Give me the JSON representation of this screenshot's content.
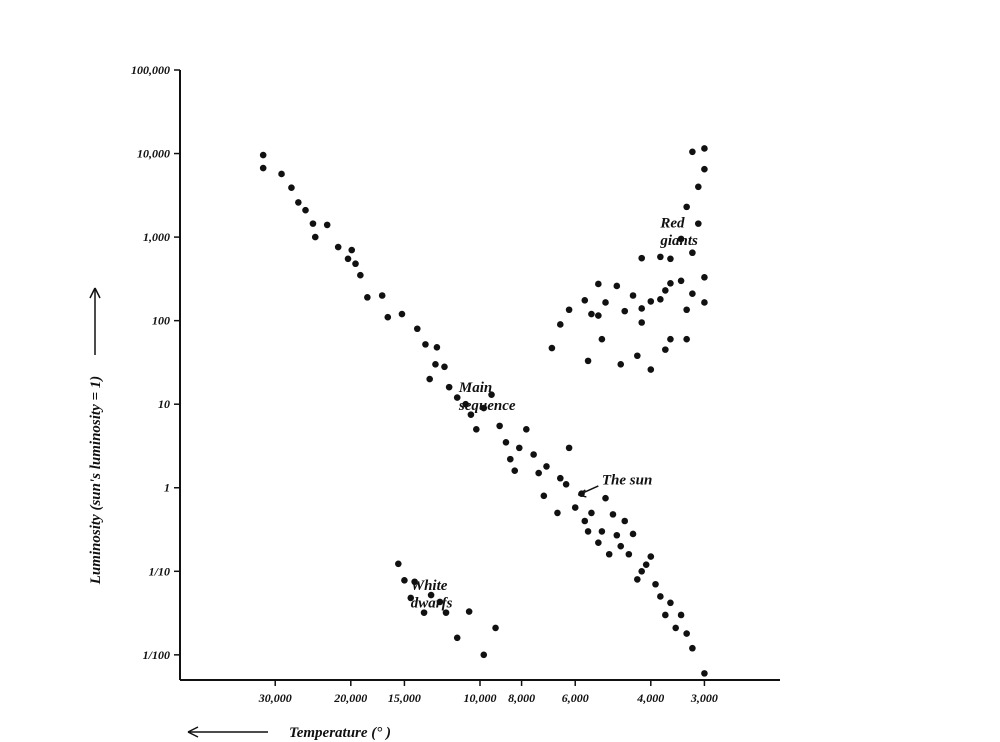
{
  "chart_data": {
    "type": "scatter",
    "title": "",
    "xlabel": "Temperature (°  )",
    "ylabel": "Luminosity (sun's luminosity = 1)",
    "x_scale": "log",
    "x_reversed": true,
    "y_scale": "log",
    "xlim": [
      50000,
      2000
    ],
    "ylim": [
      0.005,
      100000
    ],
    "grid": false,
    "legend": "none",
    "x_ticks": [
      {
        "value": 30000,
        "label": "30,000"
      },
      {
        "value": 20000,
        "label": "20,000"
      },
      {
        "value": 15000,
        "label": "15,000"
      },
      {
        "value": 10000,
        "label": "10,000"
      },
      {
        "value": 8000,
        "label": "8,000"
      },
      {
        "value": 6000,
        "label": "6,000"
      },
      {
        "value": 4000,
        "label": "4,000"
      },
      {
        "value": 3000,
        "label": "3,000"
      }
    ],
    "y_ticks": [
      {
        "value": 100000,
        "label": "100,000"
      },
      {
        "value": 10000,
        "label": "10,000"
      },
      {
        "value": 1000,
        "label": "1,000"
      },
      {
        "value": 100,
        "label": "100"
      },
      {
        "value": 10,
        "label": "10"
      },
      {
        "value": 1,
        "label": "1"
      },
      {
        "value": 0.1,
        "label": "1/10"
      },
      {
        "value": 0.01,
        "label": "1/100"
      }
    ],
    "annotations": [
      {
        "text": "Red",
        "x": 3800,
        "y": 1300
      },
      {
        "text": "giants",
        "x": 3800,
        "y": 800
      },
      {
        "text": "Main",
        "x": 11200,
        "y": 14
      },
      {
        "text": "sequence",
        "x": 11200,
        "y": 8.5
      },
      {
        "text": "White",
        "x": 14500,
        "y": 0.06
      },
      {
        "text": "dwarfs",
        "x": 14500,
        "y": 0.037
      },
      {
        "text": "The sun",
        "x": 5200,
        "y": 1.1
      }
    ],
    "sun_arrow": {
      "from": [
        5300,
        1.05
      ],
      "to": [
        5900,
        0.82
      ]
    },
    "series": [
      {
        "name": "",
        "points": [
          [
            32000,
            9600
          ],
          [
            32000,
            6700
          ],
          [
            29000,
            5700
          ],
          [
            27500,
            3900
          ],
          [
            26500,
            2600
          ],
          [
            25500,
            2100
          ],
          [
            24500,
            1450
          ],
          [
            24200,
            1000
          ],
          [
            22700,
            1400
          ],
          [
            21400,
            760
          ],
          [
            20300,
            550
          ],
          [
            19900,
            700
          ],
          [
            19500,
            480
          ],
          [
            19000,
            350
          ],
          [
            18300,
            190
          ],
          [
            16900,
            200
          ],
          [
            16400,
            110
          ],
          [
            15200,
            120
          ],
          [
            14000,
            80
          ],
          [
            13400,
            52
          ],
          [
            12700,
            30
          ],
          [
            13100,
            20
          ],
          [
            12600,
            48
          ],
          [
            12100,
            28
          ],
          [
            11800,
            16
          ],
          [
            11300,
            12
          ],
          [
            10800,
            10
          ],
          [
            10500,
            7.5
          ],
          [
            10200,
            5
          ],
          [
            9800,
            9
          ],
          [
            9400,
            13
          ],
          [
            9000,
            5.5
          ],
          [
            8700,
            3.5
          ],
          [
            8500,
            2.2
          ],
          [
            8300,
            1.6
          ],
          [
            8100,
            3
          ],
          [
            7800,
            5
          ],
          [
            7500,
            2.5
          ],
          [
            7300,
            1.5
          ],
          [
            7100,
            0.8
          ],
          [
            7000,
            1.8
          ],
          [
            6600,
            0.5
          ],
          [
            6500,
            1.3
          ],
          [
            6300,
            1.1
          ],
          [
            6200,
            3
          ],
          [
            6000,
            0.58
          ],
          [
            5800,
            0.85
          ],
          [
            5700,
            0.4
          ],
          [
            5600,
            0.3
          ],
          [
            5500,
            0.5
          ],
          [
            5300,
            0.22
          ],
          [
            5200,
            0.3
          ],
          [
            5100,
            0.75
          ],
          [
            5000,
            0.16
          ],
          [
            4900,
            0.48
          ],
          [
            4800,
            0.27
          ],
          [
            4700,
            0.2
          ],
          [
            4600,
            0.4
          ],
          [
            4500,
            0.16
          ],
          [
            4400,
            0.28
          ],
          [
            4300,
            0.08
          ],
          [
            4200,
            0.1
          ],
          [
            4100,
            0.12
          ],
          [
            4000,
            0.15
          ],
          [
            3900,
            0.07
          ],
          [
            3800,
            0.05
          ],
          [
            3700,
            0.03
          ],
          [
            3600,
            0.042
          ],
          [
            3500,
            0.021
          ],
          [
            3400,
            0.03
          ],
          [
            3300,
            0.018
          ],
          [
            3200,
            0.012
          ],
          [
            3000,
            0.006
          ],
          [
            3200,
            10500
          ],
          [
            3000,
            11500
          ],
          [
            3100,
            4000
          ],
          [
            3000,
            6500
          ],
          [
            3300,
            2300
          ],
          [
            3100,
            1450
          ],
          [
            3400,
            950
          ],
          [
            3200,
            650
          ],
          [
            3600,
            550
          ],
          [
            3800,
            580
          ],
          [
            4200,
            560
          ],
          [
            3000,
            330
          ],
          [
            3000,
            165
          ],
          [
            3200,
            210
          ],
          [
            3400,
            300
          ],
          [
            3600,
            280
          ],
          [
            3800,
            180
          ],
          [
            4000,
            170
          ],
          [
            4200,
            140
          ],
          [
            4400,
            200
          ],
          [
            4800,
            260
          ],
          [
            5300,
            275
          ],
          [
            5100,
            165
          ],
          [
            5500,
            120
          ],
          [
            5700,
            175
          ],
          [
            6200,
            135
          ],
          [
            6500,
            90
          ],
          [
            5300,
            115
          ],
          [
            4600,
            130
          ],
          [
            4200,
            95
          ],
          [
            3700,
            230
          ],
          [
            3300,
            135
          ],
          [
            3600,
            60
          ],
          [
            3300,
            60
          ],
          [
            3700,
            45
          ],
          [
            4300,
            38
          ],
          [
            4000,
            26
          ],
          [
            4700,
            30
          ],
          [
            5200,
            60
          ],
          [
            5600,
            33
          ],
          [
            6800,
            47
          ]
        ]
      },
      {
        "name": "",
        "points": [
          [
            15500,
            0.123
          ],
          [
            15000,
            0.078
          ],
          [
            14500,
            0.048
          ],
          [
            14200,
            0.075
          ],
          [
            13500,
            0.032
          ],
          [
            13000,
            0.052
          ],
          [
            12400,
            0.043
          ],
          [
            12000,
            0.032
          ],
          [
            11300,
            0.016
          ],
          [
            10600,
            0.033
          ],
          [
            9800,
            0.01
          ],
          [
            9200,
            0.021
          ]
        ]
      }
    ]
  }
}
